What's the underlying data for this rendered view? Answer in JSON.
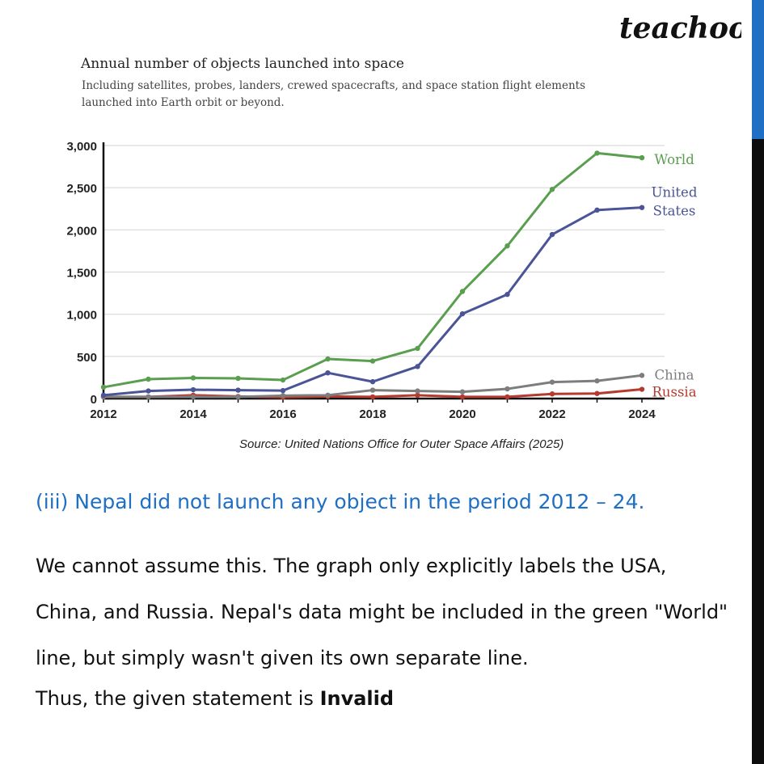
{
  "brand": {
    "logo": "teachoo"
  },
  "chart_data": {
    "type": "line",
    "title": "Annual number of objects launched into space",
    "subtitle": "Including satellites, probes, landers, crewed spacecrafts, and space station flight elements launched into Earth orbit or beyond.",
    "x": [
      2012,
      2013,
      2014,
      2015,
      2016,
      2017,
      2018,
      2019,
      2020,
      2021,
      2022,
      2023,
      2024
    ],
    "xticks": [
      "2012",
      "2014",
      "2016",
      "2018",
      "2020",
      "2022",
      "2024"
    ],
    "yticks": [
      "0",
      "500",
      "1,000",
      "1,500",
      "2,000",
      "2,500",
      "3,000"
    ],
    "ylim": [
      0,
      3000
    ],
    "grid": true,
    "series": [
      {
        "name": "World",
        "label_lines": [
          "World"
        ],
        "color": "#5a9e4f",
        "values": [
          135,
          230,
          245,
          240,
          220,
          470,
          445,
          595,
          1270,
          1810,
          2480,
          2910,
          2855
        ]
      },
      {
        "name": "United States",
        "label_lines": [
          "United",
          "States"
        ],
        "color": "#4a5497",
        "values": [
          40,
          90,
          105,
          100,
          95,
          305,
          200,
          380,
          1005,
          1235,
          1945,
          2235,
          2265
        ]
      },
      {
        "name": "China",
        "label_lines": [
          "China"
        ],
        "color": "#7d7d7d",
        "values": [
          20,
          20,
          20,
          20,
          35,
          40,
          100,
          90,
          80,
          115,
          195,
          210,
          275
        ]
      },
      {
        "name": "Russia",
        "label_lines": [
          "Russia"
        ],
        "color": "#b5392f",
        "values": [
          20,
          20,
          40,
          25,
          15,
          25,
          20,
          40,
          20,
          20,
          55,
          60,
          110
        ]
      }
    ],
    "source": "Source: United Nations Office for Outer Space Affairs (2025)"
  },
  "question": "(iii) Nepal did not launch any object in the period 2012 – 24.",
  "answer": "We cannot assume this. The graph only explicitly labels the USA, China, and Russia. Nepal's data might be included in the green \"World\" line, but simply wasn't given its own separate line.",
  "conclusion": {
    "prefix": "Thus, the given statement is ",
    "verdict": "Invalid"
  }
}
